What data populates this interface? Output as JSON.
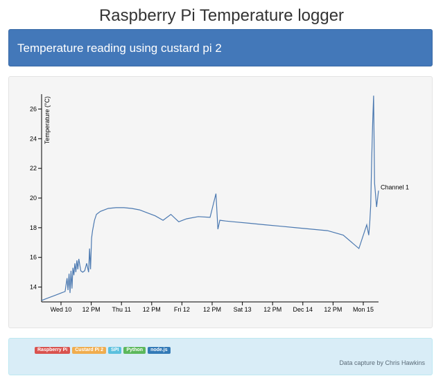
{
  "page": {
    "title": "Raspberry Pi Temperature logger"
  },
  "header": {
    "text": "Temperature reading using custard pi 2"
  },
  "chart_data": {
    "type": "line",
    "title": "",
    "xlabel": "",
    "ylabel": "Temperature (°C)",
    "ylim": [
      13,
      27
    ],
    "y_ticks": [
      14,
      16,
      18,
      20,
      22,
      24,
      26
    ],
    "x_ticks": [
      "Wed 10",
      "12 PM",
      "Thu 11",
      "12 PM",
      "Fri 12",
      "12 PM",
      "Sat 13",
      "12 PM",
      "Dec 14",
      "12 PM",
      "Mon 15"
    ],
    "grid": false,
    "series": [
      {
        "name": "Channel 1",
        "x": [
          0,
          2,
          4,
          6,
          8,
          10,
          12,
          13,
          13.5,
          14,
          14.5,
          15,
          15.5,
          16,
          16.5,
          17,
          17.5,
          18,
          18.5,
          19,
          20,
          21,
          22,
          23,
          24,
          24.5,
          25,
          25.5,
          26,
          27,
          28,
          30,
          34,
          38,
          42,
          46,
          50,
          54,
          58,
          62,
          66,
          70,
          74,
          80,
          86,
          89,
          90,
          91,
          94,
          98,
          106,
          114,
          122,
          130,
          138,
          146,
          154,
          162,
          166,
          167,
          167.5,
          168,
          168.5,
          169,
          169.5,
          170,
          171,
          172
        ],
        "values": [
          13.1,
          13.2,
          13.3,
          13.4,
          13.5,
          13.6,
          13.7,
          14.6,
          13.8,
          14.9,
          13.6,
          15.1,
          13.9,
          15.3,
          14.8,
          15.6,
          15.0,
          15.8,
          15.2,
          15.9,
          15.1,
          15.0,
          15.1,
          15.6,
          15.0,
          16.6,
          15.2,
          17.3,
          17.8,
          18.5,
          18.9,
          19.1,
          19.3,
          19.35,
          19.35,
          19.3,
          19.2,
          19.0,
          18.8,
          18.5,
          18.9,
          18.4,
          18.6,
          18.75,
          18.7,
          20.3,
          17.9,
          18.5,
          18.45,
          18.4,
          18.3,
          18.2,
          18.1,
          18.0,
          17.9,
          17.8,
          17.5,
          16.6,
          18.2,
          17.5,
          18.3,
          19.5,
          22.5,
          25.0,
          26.9,
          21.0,
          19.4,
          20.5
        ]
      }
    ]
  },
  "footer": {
    "badges": [
      {
        "label": "Raspberry Pi",
        "color": "#d9534f"
      },
      {
        "label": "Custard Pi 2",
        "color": "#f0ad4e"
      },
      {
        "label": "SPI",
        "color": "#5bc0de"
      },
      {
        "label": "Python",
        "color": "#5cb85c"
      },
      {
        "label": "node.js",
        "color": "#337ab7"
      }
    ],
    "credit": "Data capture by Chris Hawkins"
  }
}
